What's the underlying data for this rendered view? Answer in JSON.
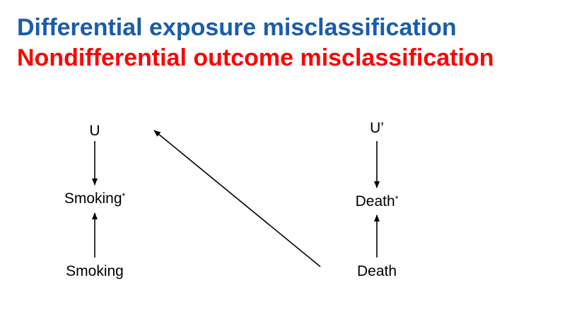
{
  "slide": {
    "title_line1": "Differential exposure misclassification",
    "title_line2": "Nondifferential outcome misclassification",
    "title_line1_color": "#1a5cab",
    "title_line2_color": "#ff0000"
  },
  "diagram": {
    "nodes": {
      "u": "U",
      "smoking_star_base": "Smoking",
      "smoking_star_mark": "*",
      "smoking": "Smoking",
      "u_prime": "U’",
      "death_star_base": "Death",
      "death_star_mark": "*",
      "death": "Death"
    },
    "edges": [
      {
        "from": "U",
        "to": "Smoking*"
      },
      {
        "from": "Smoking",
        "to": "Smoking*"
      },
      {
        "from": "U’",
        "to": "Death*"
      },
      {
        "from": "Death",
        "to": "Death*"
      },
      {
        "from": "Death",
        "to": "U"
      }
    ],
    "arrow_color": "#000000"
  }
}
